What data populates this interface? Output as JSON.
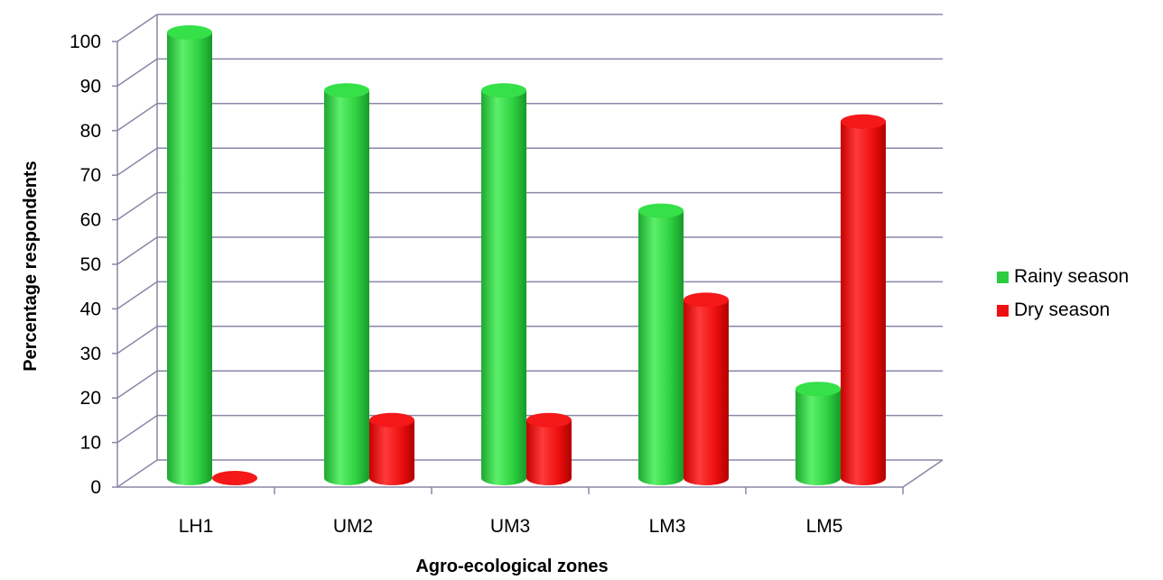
{
  "chart_data": {
    "type": "bar",
    "categories": [
      "LH1",
      "UM2",
      "UM3",
      "LM3",
      "LM5"
    ],
    "series": [
      {
        "name": "Rainy season",
        "values": [
          100,
          87,
          87,
          60,
          20
        ],
        "color": "#2ecc40"
      },
      {
        "name": "Dry season",
        "values": [
          0,
          13,
          13,
          40,
          80
        ],
        "color": "#ee1111"
      }
    ],
    "xlabel": "Agro-ecological zones",
    "ylabel": "Percentage respondents",
    "ylim": [
      0,
      100
    ],
    "yticks": [
      "0",
      "10",
      "20",
      "30",
      "40",
      "50",
      "60",
      "70",
      "80",
      "90",
      "100"
    ],
    "grid": true,
    "legend_position": "right",
    "style": "3d-cylinder"
  }
}
